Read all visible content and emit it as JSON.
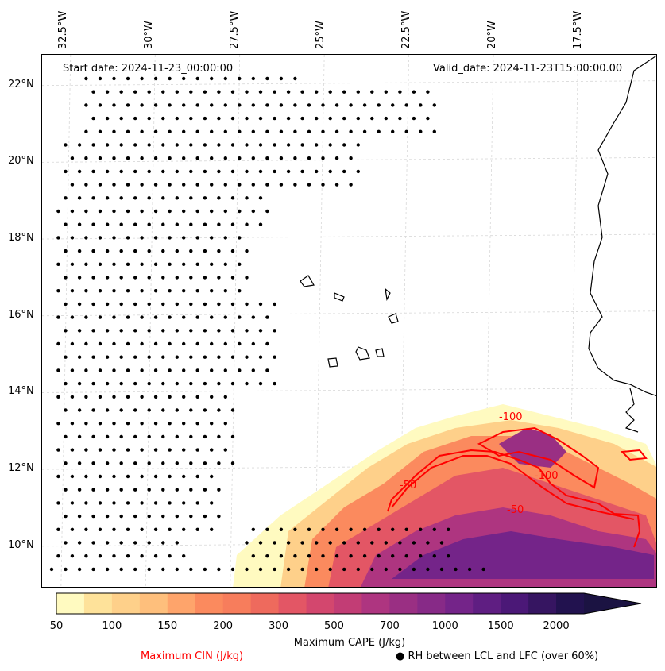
{
  "map": {
    "start_date": "Start date: 2024-11-23_00:00:00",
    "valid_date": "Valid_date: 2024-11-23T15:00:00.00",
    "lon_labels": [
      "32.5°W",
      "30°W",
      "27.5°W",
      "25°W",
      "22.5°W",
      "20°W",
      "17.5°W"
    ],
    "lon_values": [
      -32.5,
      -30,
      -27.5,
      -25,
      -22.5,
      -20,
      -17.5
    ],
    "lat_labels": [
      "22°N",
      "20°N",
      "18°N",
      "16°N",
      "14°N",
      "12°N",
      "10°N"
    ],
    "lat_values": [
      22,
      20,
      18,
      16,
      14,
      12,
      10
    ],
    "lon_range": [
      -33.2,
      -15.0
    ],
    "lat_range": [
      8.9,
      22.8
    ],
    "cin_contour_labels": [
      "-50",
      "-50",
      "-100",
      "-100"
    ]
  },
  "colorbar": {
    "title": "Maximum CAPE (J/kg)",
    "tick_labels": [
      "50",
      "100",
      "150",
      "200",
      "300",
      "500",
      "700",
      "1000",
      "1500",
      "2000"
    ],
    "levels": [
      50,
      75,
      100,
      125,
      150,
      175,
      200,
      250,
      300,
      400,
      500,
      600,
      700,
      850,
      1000,
      1250,
      1500,
      1750,
      2000
    ],
    "colors": [
      "#fffac0",
      "#fee29a",
      "#fed08a",
      "#febf7c",
      "#fea46b",
      "#fb8a5e",
      "#f77d5c",
      "#ee6a5d",
      "#e35665",
      "#d3476e",
      "#c23d75",
      "#ae3580",
      "#9a2f83",
      "#872a87",
      "#742489",
      "#5f1e82",
      "#4b1877",
      "#361561",
      "#22124f"
    ],
    "extend_color": "#1b1342"
  },
  "legend": {
    "cin_label": "Maximum CIN (J/kg)",
    "rh_label": "● RH between LCL and LFC (over 60%)",
    "cin_color": "#ff0000"
  }
}
